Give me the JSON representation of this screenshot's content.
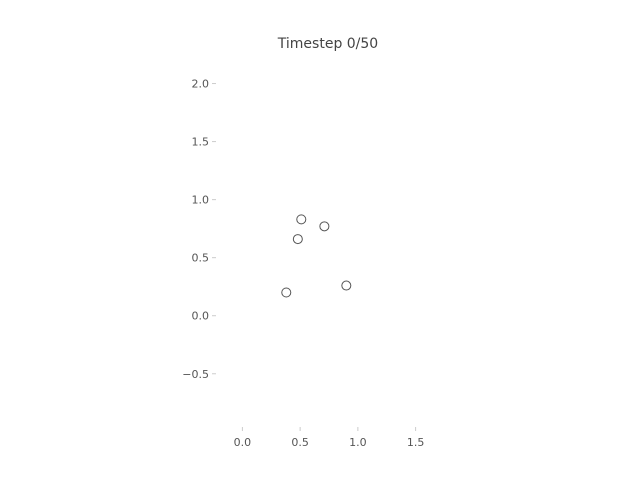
{
  "chart_data": {
    "type": "scatter",
    "title": "Timestep 0/50",
    "xlabel": "",
    "ylabel": "",
    "xlim": [
      -0.22,
      1.72
    ],
    "ylim": [
      -0.95,
      2.22
    ],
    "x_ticks": [
      0.0,
      0.5,
      1.0,
      1.5
    ],
    "x_tick_labels": [
      "0.0",
      "0.5",
      "1.0",
      "1.5"
    ],
    "y_ticks": [
      2.0,
      1.5,
      1.0,
      0.5,
      0.0,
      -0.5
    ],
    "y_tick_labels": [
      "2.0",
      "1.5",
      "1.0",
      "0.5",
      "0.0",
      "−0.5"
    ],
    "points": [
      {
        "x": 0.51,
        "y": 0.83
      },
      {
        "x": 0.71,
        "y": 0.77
      },
      {
        "x": 0.48,
        "y": 0.66
      },
      {
        "x": 0.9,
        "y": 0.26
      },
      {
        "x": 0.38,
        "y": 0.2
      }
    ],
    "grid": false,
    "frame": false,
    "marker": "hollow-circle",
    "marker_color": "#555555"
  }
}
